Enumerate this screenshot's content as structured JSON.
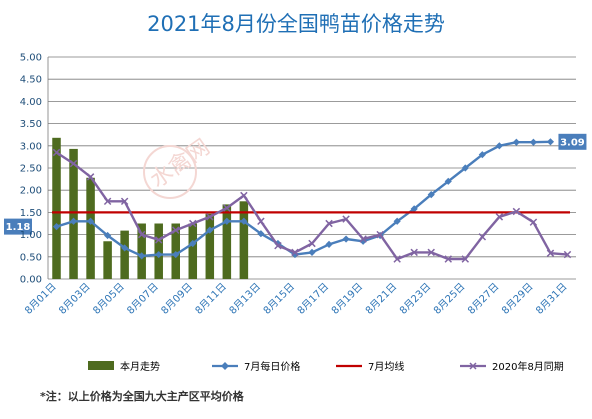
{
  "chart_data": {
    "type": "bar+line",
    "title": "2021年8月份全国鸭苗价格走势",
    "ylim": [
      0,
      5
    ],
    "yticks": [
      "0.00",
      "0.50",
      "1.00",
      "1.50",
      "2.00",
      "2.50",
      "3.00",
      "3.50",
      "4.00",
      "4.50",
      "5.00"
    ],
    "x": [
      "8月01日",
      "8月02日",
      "8月03日",
      "8月04日",
      "8月05日",
      "8月06日",
      "8月07日",
      "8月08日",
      "8月09日",
      "8月10日",
      "8月11日",
      "8月12日",
      "8月13日",
      "8月14日",
      "8月15日",
      "8月16日",
      "8月17日",
      "8月18日",
      "8月19日",
      "8月20日",
      "8月21日",
      "8月22日",
      "8月23日",
      "8月24日",
      "8月25日",
      "8月26日",
      "8月27日",
      "8月28日",
      "8月29日",
      "8月30日",
      "8月31日"
    ],
    "xtick_labels": [
      "8月01日",
      "8月03日",
      "8月05日",
      "8月07日",
      "8月09日",
      "8月11日",
      "8月13日",
      "8月15日",
      "8月17日",
      "8月19日",
      "8月21日",
      "8月23日",
      "8月25日",
      "8月27日",
      "8月29日",
      "8月31日"
    ],
    "series": [
      {
        "name": "本月走势",
        "kind": "bar",
        "color": "#4e6b1f",
        "values": [
          3.18,
          2.93,
          2.28,
          0.85,
          1.09,
          1.25,
          1.25,
          1.25,
          1.25,
          1.47,
          1.68,
          1.75,
          null,
          null,
          null,
          null,
          null,
          null,
          null,
          null,
          null,
          null,
          null,
          null,
          null,
          null,
          null,
          null,
          null,
          null,
          null
        ]
      },
      {
        "name": "7月每日价格",
        "kind": "line",
        "marker": "diamond",
        "color": "#4a7ebb",
        "values": [
          1.18,
          1.3,
          1.3,
          0.98,
          0.7,
          0.52,
          0.55,
          0.55,
          0.8,
          1.1,
          1.3,
          1.3,
          1.02,
          0.8,
          0.55,
          0.6,
          0.78,
          0.9,
          0.85,
          0.98,
          1.3,
          1.58,
          1.9,
          2.2,
          2.5,
          2.8,
          3.0,
          3.08,
          3.08,
          3.09,
          null
        ]
      },
      {
        "name": "7月均线",
        "kind": "line",
        "marker": "none",
        "color": "#c00000",
        "values": [
          1.5,
          1.5,
          1.5,
          1.5,
          1.5,
          1.5,
          1.5,
          1.5,
          1.5,
          1.5,
          1.5,
          1.5,
          1.5,
          1.5,
          1.5,
          1.5,
          1.5,
          1.5,
          1.5,
          1.5,
          1.5,
          1.5,
          1.5,
          1.5,
          1.5,
          1.5,
          1.5,
          1.5,
          1.5,
          1.5,
          1.5
        ]
      },
      {
        "name": "2020年8月同期",
        "kind": "line",
        "marker": "x",
        "color": "#8064a2",
        "values": [
          2.85,
          2.6,
          2.3,
          1.75,
          1.75,
          1.0,
          0.88,
          1.1,
          1.25,
          1.4,
          1.6,
          1.88,
          1.3,
          0.75,
          0.6,
          0.8,
          1.25,
          1.35,
          0.9,
          1.0,
          0.45,
          0.6,
          0.6,
          0.45,
          0.45,
          0.95,
          1.4,
          1.52,
          1.28,
          0.58,
          0.55
        ]
      }
    ],
    "data_labels": [
      {
        "series": "7月每日价格",
        "index": 0,
        "text": "1.18"
      },
      {
        "series": "7月每日价格",
        "index": 29,
        "text": "3.09"
      }
    ],
    "grid": true,
    "legend_position": "bottom"
  },
  "footnote": "*注：以上价格为全国九大主产区平均价格",
  "watermark": "水禽网"
}
